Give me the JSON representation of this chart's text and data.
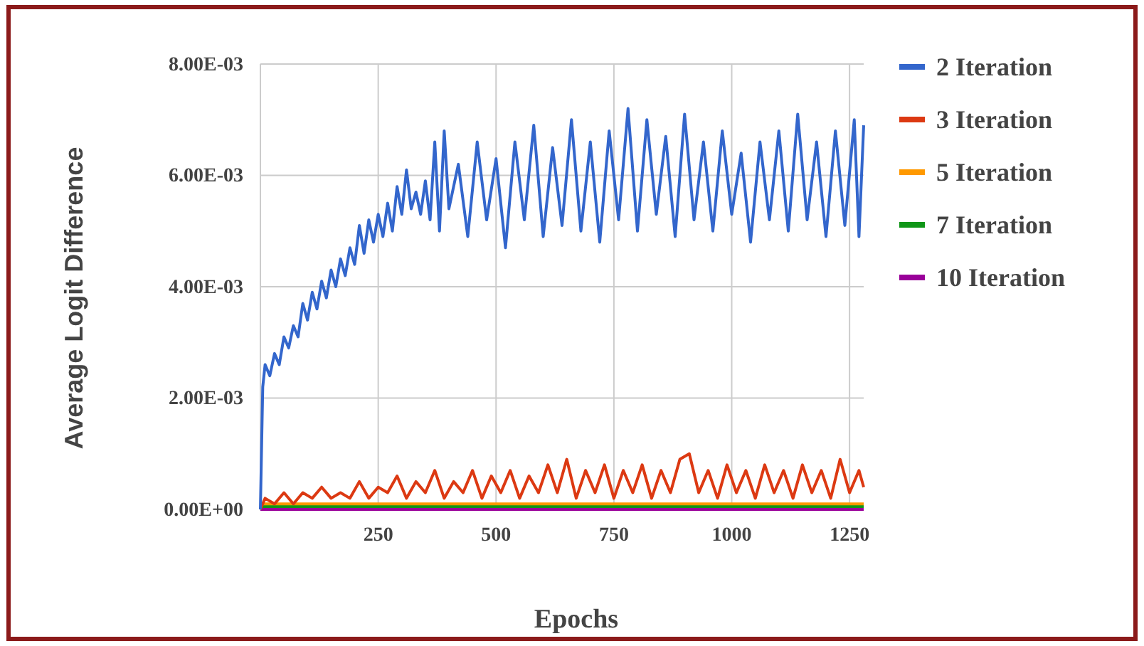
{
  "chart_data": {
    "type": "line",
    "xlabel": "Epochs",
    "ylabel": "Average Logit Difference",
    "xlim": [
      0,
      1280
    ],
    "xticks": [
      250,
      500,
      750,
      1000,
      1250
    ],
    "ylim": [
      0,
      0.008
    ],
    "yticks": [
      {
        "value": 0,
        "label": "0.00E+00"
      },
      {
        "value": 0.002,
        "label": "2.00E-03"
      },
      {
        "value": 0.004,
        "label": "4.00E-03"
      },
      {
        "value": 0.006,
        "label": "6.00E-03"
      },
      {
        "value": 0.008,
        "label": "8.00E-03"
      }
    ],
    "grid": true,
    "legend": "right",
    "marker": "none",
    "line_style": "solid",
    "series": [
      {
        "name": "2 Iteration",
        "color": "#3366cc",
        "x": [
          0,
          5,
          10,
          20,
          30,
          40,
          50,
          60,
          70,
          80,
          90,
          100,
          110,
          120,
          130,
          140,
          150,
          160,
          170,
          180,
          190,
          200,
          210,
          220,
          230,
          240,
          250,
          260,
          270,
          280,
          290,
          300,
          310,
          320,
          330,
          340,
          350,
          360,
          370,
          380,
          390,
          400,
          420,
          440,
          460,
          480,
          500,
          520,
          540,
          560,
          580,
          600,
          620,
          640,
          660,
          680,
          700,
          720,
          740,
          760,
          780,
          800,
          820,
          840,
          860,
          880,
          900,
          920,
          940,
          960,
          980,
          1000,
          1020,
          1040,
          1060,
          1080,
          1100,
          1120,
          1140,
          1160,
          1180,
          1200,
          1220,
          1240,
          1260,
          1270,
          1280
        ],
        "values": [
          0,
          0.0022,
          0.0026,
          0.0024,
          0.0028,
          0.0026,
          0.0031,
          0.0029,
          0.0033,
          0.0031,
          0.0037,
          0.0034,
          0.0039,
          0.0036,
          0.0041,
          0.0038,
          0.0043,
          0.004,
          0.0045,
          0.0042,
          0.0047,
          0.0044,
          0.0051,
          0.0046,
          0.0052,
          0.0048,
          0.0053,
          0.0049,
          0.0055,
          0.005,
          0.0058,
          0.0053,
          0.0061,
          0.0054,
          0.0057,
          0.0053,
          0.0059,
          0.0052,
          0.0066,
          0.005,
          0.0068,
          0.0054,
          0.0062,
          0.0049,
          0.0066,
          0.0052,
          0.0063,
          0.0047,
          0.0066,
          0.0052,
          0.0069,
          0.0049,
          0.0065,
          0.0051,
          0.007,
          0.005,
          0.0066,
          0.0048,
          0.0068,
          0.0052,
          0.0072,
          0.005,
          0.007,
          0.0053,
          0.0067,
          0.0049,
          0.0071,
          0.0052,
          0.0066,
          0.005,
          0.0068,
          0.0053,
          0.0064,
          0.0048,
          0.0066,
          0.0052,
          0.0068,
          0.005,
          0.0071,
          0.0052,
          0.0066,
          0.0049,
          0.0068,
          0.0051,
          0.007,
          0.0049,
          0.0069
        ]
      },
      {
        "name": "3 Iteration",
        "color": "#dc3912",
        "x": [
          0,
          10,
          30,
          50,
          70,
          90,
          110,
          130,
          150,
          170,
          190,
          210,
          230,
          250,
          270,
          290,
          310,
          330,
          350,
          370,
          390,
          410,
          430,
          450,
          470,
          490,
          510,
          530,
          550,
          570,
          590,
          610,
          630,
          650,
          670,
          690,
          710,
          730,
          750,
          770,
          790,
          810,
          830,
          850,
          870,
          890,
          910,
          930,
          950,
          970,
          990,
          1010,
          1030,
          1050,
          1070,
          1090,
          1110,
          1130,
          1150,
          1170,
          1190,
          1210,
          1230,
          1250,
          1270,
          1280
        ],
        "values": [
          0,
          0.0002,
          0.0001,
          0.0003,
          0.0001,
          0.0003,
          0.0002,
          0.0004,
          0.0002,
          0.0003,
          0.0002,
          0.0005,
          0.0002,
          0.0004,
          0.0003,
          0.0006,
          0.0002,
          0.0005,
          0.0003,
          0.0007,
          0.0002,
          0.0005,
          0.0003,
          0.0007,
          0.0002,
          0.0006,
          0.0003,
          0.0007,
          0.0002,
          0.0006,
          0.0003,
          0.0008,
          0.0003,
          0.0009,
          0.0002,
          0.0007,
          0.0003,
          0.0008,
          0.0002,
          0.0007,
          0.0003,
          0.0008,
          0.0002,
          0.0007,
          0.0003,
          0.0009,
          0.001,
          0.0003,
          0.0007,
          0.0002,
          0.0008,
          0.0003,
          0.0007,
          0.0002,
          0.0008,
          0.0003,
          0.0007,
          0.0002,
          0.0008,
          0.0003,
          0.0007,
          0.0002,
          0.0009,
          0.0003,
          0.0007,
          0.0004
        ]
      },
      {
        "name": "5 Iteration",
        "color": "#ff9900",
        "x": [
          0,
          1280
        ],
        "values": [
          0.0001,
          0.0001
        ]
      },
      {
        "name": "7 Iteration",
        "color": "#109618",
        "x": [
          0,
          1280
        ],
        "values": [
          5e-05,
          5e-05
        ]
      },
      {
        "name": "10 Iteration",
        "color": "#990099",
        "x": [
          0,
          1280
        ],
        "values": [
          0,
          0
        ]
      }
    ]
  }
}
